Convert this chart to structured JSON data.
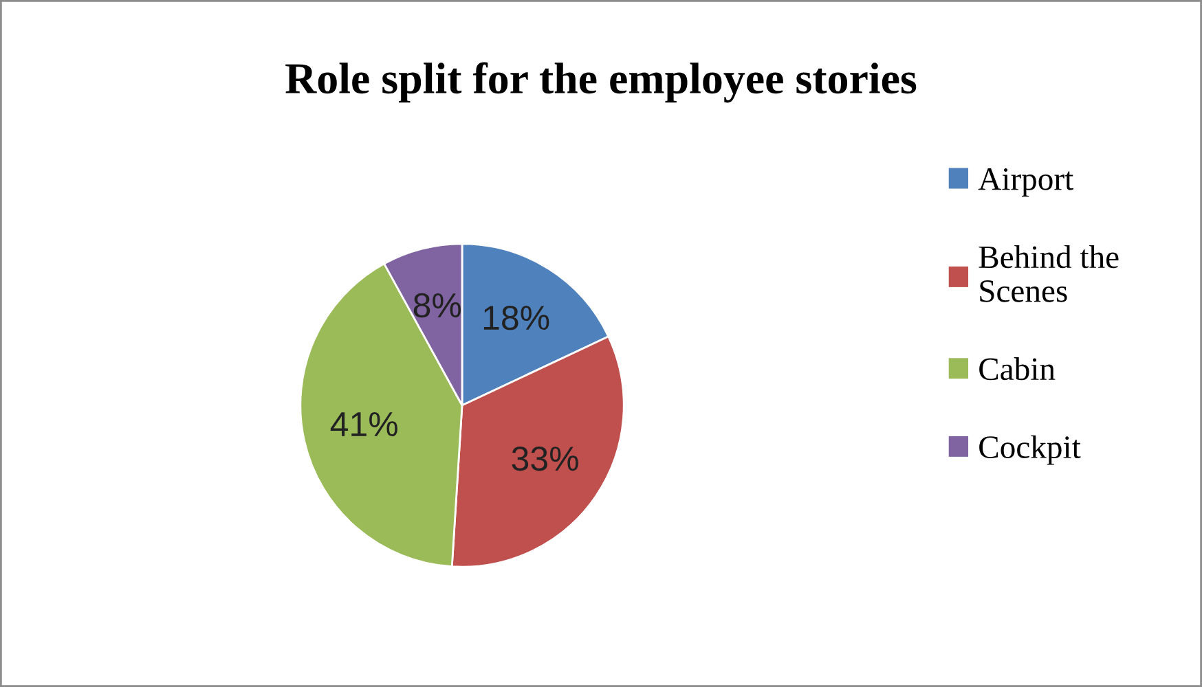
{
  "chart_data": {
    "type": "pie",
    "title": "Role split for the employee stories",
    "categories": [
      "Airport",
      "Behind the Scenes",
      "Cabin",
      "Cockpit"
    ],
    "values": [
      18,
      33,
      41,
      8
    ],
    "colors": [
      "#4f81bd",
      "#c0504d",
      "#9bbb59",
      "#8064a2"
    ],
    "value_labels": [
      "18%",
      "33%",
      "41%",
      "8%"
    ],
    "legend": "right"
  }
}
